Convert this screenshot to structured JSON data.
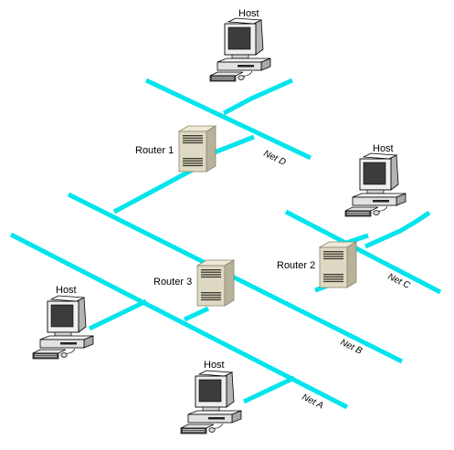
{
  "colors": {
    "network": "#00e5ec",
    "router_body": "#ded9c2",
    "router_dark": "#8c8672",
    "monitor": "#f1f1f1",
    "screen": "#3c3c3c",
    "background": "#ffffff"
  },
  "hosts": [
    {
      "label": "Host",
      "icon": "computer-icon"
    },
    {
      "label": "Host",
      "icon": "computer-icon"
    },
    {
      "label": "Host",
      "icon": "computer-icon"
    },
    {
      "label": "Host",
      "icon": "computer-icon"
    }
  ],
  "routers": [
    {
      "label": "Router 1",
      "icon": "router-icon"
    },
    {
      "label": "Router 2",
      "icon": "router-icon"
    },
    {
      "label": "Router 3",
      "icon": "router-icon"
    }
  ],
  "networks": [
    {
      "label": "Net A"
    },
    {
      "label": "Net B"
    },
    {
      "label": "Net C"
    },
    {
      "label": "Net D"
    }
  ]
}
